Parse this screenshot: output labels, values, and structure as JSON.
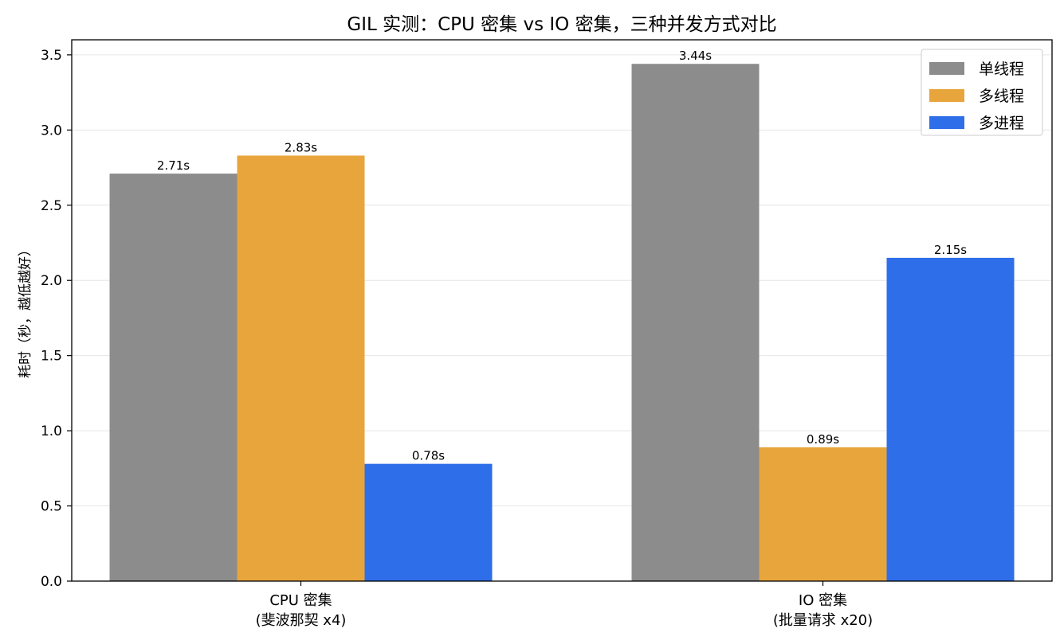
{
  "chart_data": {
    "type": "bar",
    "title": "GIL 实测：CPU 密集 vs IO 密集，三种并发方式对比",
    "xlabel": "",
    "ylabel": "耗时（秒，越低越好）",
    "ylim": [
      0,
      3.6
    ],
    "yticks": [
      "0.0",
      "0.5",
      "1.0",
      "1.5",
      "2.0",
      "2.5",
      "3.0",
      "3.5"
    ],
    "ytick_values": [
      0,
      0.5,
      1.0,
      1.5,
      2.0,
      2.5,
      3.0,
      3.5
    ],
    "grid": "y",
    "legend_position": "top-right",
    "categories": [
      [
        "CPU 密集",
        "(斐波那契 x4)"
      ],
      [
        "IO 密集",
        "(批量请求 x20)"
      ]
    ],
    "series": [
      {
        "name": "单线程",
        "color": "#8c8c8c",
        "values": [
          2.71,
          3.44
        ],
        "labels": [
          "2.71s",
          "3.44s"
        ]
      },
      {
        "name": "多线程",
        "color": "#e8a53c",
        "values": [
          2.83,
          0.89
        ],
        "labels": [
          "2.83s",
          "0.89s"
        ]
      },
      {
        "name": "多进程",
        "color": "#2e6ee9",
        "values": [
          0.78,
          2.15
        ],
        "labels": [
          "0.78s",
          "2.15s"
        ]
      }
    ]
  }
}
